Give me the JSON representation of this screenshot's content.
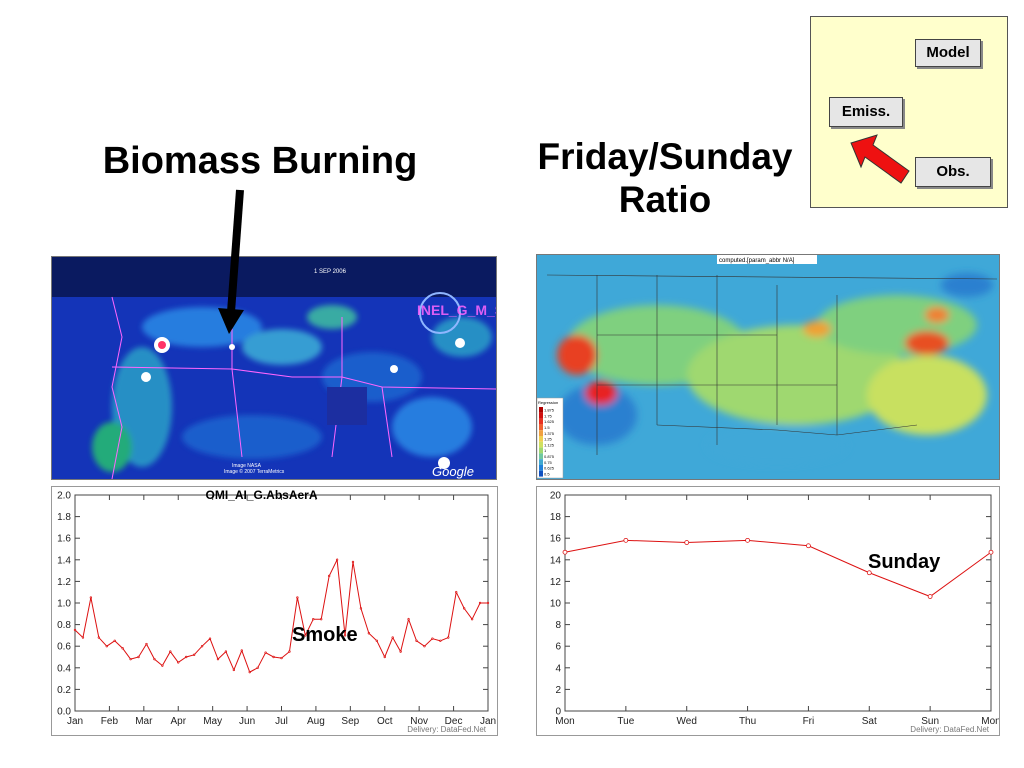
{
  "titles": {
    "biomass": "Biomass Burning",
    "ratio_line1": "Friday/Sunday",
    "ratio_line2": "Ratio"
  },
  "legend_box": {
    "model": "Model",
    "emiss": "Emiss.",
    "obs": "Obs.",
    "arrow_color": "#ee1111"
  },
  "map_left": {
    "date_label": "1 SEP 2006",
    "google_logo": "Google",
    "watermark": "INEL_G_M_S",
    "credit_line1": "Image NASA",
    "credit_line2": "Image © 2007 TerraMetrics"
  },
  "map_right": {
    "header": "computed.[param_abbr N/A]",
    "scale_title": "Regression",
    "scale_values": [
      "1.875",
      "1.75",
      "1.625",
      "1.5",
      "1.375",
      "1.25",
      "1.125",
      "1",
      "0.875",
      "0.75",
      "0.625",
      "0.5"
    ]
  },
  "chart_data": [
    {
      "type": "line",
      "title": "OMI_AI_G.AbsAerA",
      "xlabel": "",
      "ylabel": "",
      "ylim": [
        0.0,
        2.0
      ],
      "y_ticks": [
        "0.0",
        "0.2",
        "0.4",
        "0.6",
        "0.8",
        "1.0",
        "1.2",
        "1.4",
        "1.6",
        "1.8",
        "2.0"
      ],
      "x_ticks": [
        "Jan",
        "Feb",
        "Mar",
        "Apr",
        "May",
        "Jun",
        "Jul",
        "Aug",
        "Sep",
        "Oct",
        "Nov",
        "Dec",
        "Jan"
      ],
      "series": [
        {
          "color": "#dd1111",
          "values": [
            0.75,
            0.68,
            1.05,
            0.68,
            0.6,
            0.65,
            0.58,
            0.48,
            0.5,
            0.62,
            0.48,
            0.42,
            0.55,
            0.45,
            0.5,
            0.52,
            0.6,
            0.67,
            0.48,
            0.55,
            0.38,
            0.56,
            0.36,
            0.4,
            0.54,
            0.5,
            0.49,
            0.55,
            1.05,
            0.7,
            0.85,
            0.85,
            1.25,
            1.4,
            0.7,
            1.38,
            0.95,
            0.72,
            0.65,
            0.5,
            0.68,
            0.55,
            0.85,
            0.65,
            0.6,
            0.67,
            0.65,
            0.68,
            1.1,
            0.95,
            0.85,
            1.0,
            1.0
          ]
        }
      ],
      "annotation": "Smoke",
      "footer": "Delivery: DataFed.Net"
    },
    {
      "type": "line",
      "title": "",
      "xlabel": "",
      "ylabel": "",
      "ylim": [
        0,
        20
      ],
      "y_ticks": [
        "0",
        "2",
        "4",
        "6",
        "8",
        "10",
        "12",
        "14",
        "16",
        "18",
        "20"
      ],
      "categories": [
        "Mon",
        "Tue",
        "Wed",
        "Thu",
        "Fri",
        "Sat",
        "Sun",
        "Mon"
      ],
      "series": [
        {
          "color": "#dd1111",
          "values": [
            14.7,
            15.8,
            15.6,
            15.8,
            15.3,
            12.8,
            10.6,
            14.7
          ]
        }
      ],
      "annotation": "Sunday",
      "footer": "Delivery: DataFed.Net"
    }
  ]
}
